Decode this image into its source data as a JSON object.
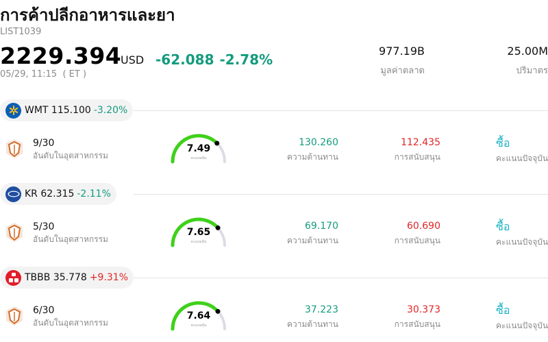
{
  "header": {
    "title": "การค้าปลีกอาหารและยา",
    "code": "LIST1039",
    "price": "2229.394",
    "currency": "USD",
    "change": "-62.088",
    "change_pct": "-2.78%",
    "time": "05/29, 11:15  ( ET )",
    "market_cap_value": "977.19B",
    "market_cap_label": "มูลค่าตลาด",
    "volume_value": "25.00M",
    "volume_label": "ปริมาตร"
  },
  "colors": {
    "up": "#e02424",
    "down": "#139b7e",
    "buy": "#1ab3c4",
    "gauge": "#3ed11a"
  },
  "stocks": [
    {
      "ticker": "WMT",
      "price": "115.100",
      "change_pct": "-3.20%",
      "rank": "9/30",
      "rank_label": "อันดับในอุตสาหกรรม",
      "score": "7.49",
      "score_caption": "คะแนนหุ้น",
      "score_value": 7.49,
      "resistance": "130.260",
      "resistance_label": "ความต้านทาน",
      "support": "112.435",
      "support_label": "การสนับสนุน",
      "rating": "ซื้อ",
      "rating_label": "คะแนนปัจจุบัน"
    },
    {
      "ticker": "KR",
      "price": "62.315",
      "change_pct": "-2.11%",
      "rank": "5/30",
      "rank_label": "อันดับในอุตสาหกรรม",
      "score": "7.65",
      "score_caption": "คะแนนหุ้น",
      "score_value": 7.65,
      "resistance": "69.170",
      "resistance_label": "ความต้านทาน",
      "support": "60.690",
      "support_label": "การสนับสนุน",
      "rating": "ซื้อ",
      "rating_label": "คะแนนปัจจุบัน"
    },
    {
      "ticker": "TBBB",
      "price": "35.778",
      "change_pct": "+9.31%",
      "rank": "6/30",
      "rank_label": "อันดับในอุตสาหกรรม",
      "score": "7.64",
      "score_caption": "คะแนนหุ้น",
      "score_value": 7.64,
      "resistance": "37.223",
      "resistance_label": "ความต้านทาน",
      "support": "30.373",
      "support_label": "การสนับสนุน",
      "rating": "ซื้อ",
      "rating_label": "คะแนนปัจจุบัน"
    }
  ]
}
